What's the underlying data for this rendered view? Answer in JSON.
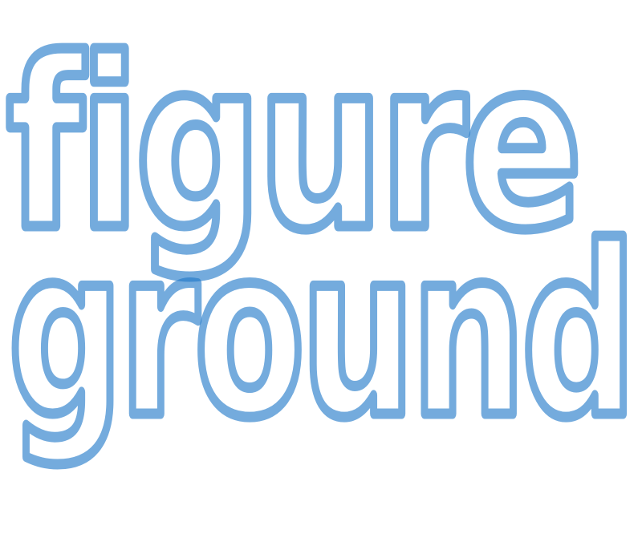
{
  "logo": {
    "lines": [
      "figure",
      "ground"
    ]
  },
  "colors": {
    "background": "#ffffff",
    "outline": "#1f78c8"
  }
}
